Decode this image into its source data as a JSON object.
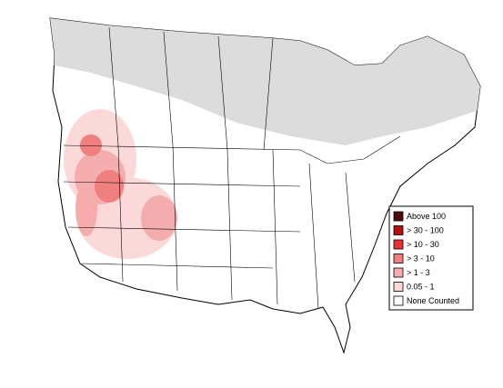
{
  "legend": {
    "items": [
      {
        "label": "Above 100",
        "color": "#4d0a0a"
      },
      {
        "label": "> 30 - 100",
        "color": "#b50f0f"
      },
      {
        "label": "> 10 - 30",
        "color": "#e83232"
      },
      {
        "label": "> 3 - 10",
        "color": "#f07f7f"
      },
      {
        "label": "> 1 - 3",
        "color": "#f5acac"
      },
      {
        "label": "0.05 - 1",
        "color": "#fcd9d9"
      },
      {
        "label": "None Counted",
        "color": "#ffffff"
      }
    ]
  }
}
